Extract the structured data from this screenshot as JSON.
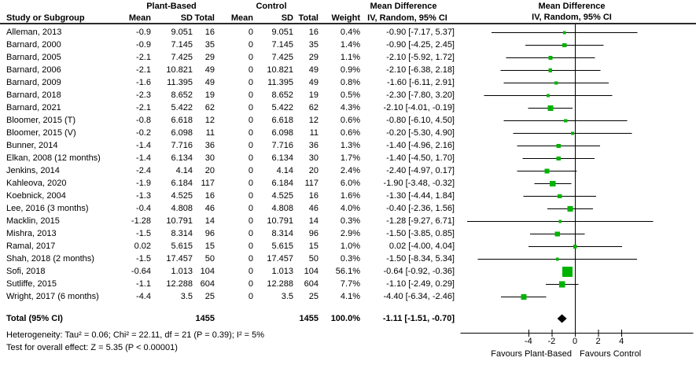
{
  "header": {
    "group1": "Plant-Based",
    "group2": "Control",
    "study_col": "Study or Subgroup",
    "mean": "Mean",
    "sd": "SD",
    "total": "Total",
    "weight": "Weight",
    "md_title": "Mean Difference",
    "md_subtitle": "IV, Random, 95% CI"
  },
  "chart_data": {
    "type": "forest",
    "effect_measure": "Mean Difference",
    "model": "IV, Random, 95% CI",
    "xlim": [
      -9.9,
      10.1
    ],
    "x_ticks": [
      -4,
      -2,
      0,
      2,
      4
    ],
    "favours_left": "Favours Plant-Based",
    "favours_right": "Favours Control",
    "square_color": "#00b300",
    "diamond_color": "#000000",
    "studies": [
      {
        "name": "Alleman, 2013",
        "mean": "-0.9",
        "sd": "9.051",
        "n": "16",
        "c_mean": "0",
        "c_sd": "9.051",
        "c_n": "16",
        "weight": "0.4%",
        "ci_label": "-0.90 [-7.17, 5.37]",
        "est": -0.9,
        "lo": -7.17,
        "hi": 5.37,
        "w": 0.4
      },
      {
        "name": "Barnard, 2000",
        "mean": "-0.9",
        "sd": "7.145",
        "n": "35",
        "c_mean": "0",
        "c_sd": "7.145",
        "c_n": "35",
        "weight": "1.4%",
        "ci_label": "-0.90 [-4.25, 2.45]",
        "est": -0.9,
        "lo": -4.25,
        "hi": 2.45,
        "w": 1.4
      },
      {
        "name": "Barnard, 2005",
        "mean": "-2.1",
        "sd": "7.425",
        "n": "29",
        "c_mean": "0",
        "c_sd": "7.425",
        "c_n": "29",
        "weight": "1.1%",
        "ci_label": "-2.10 [-5.92, 1.72]",
        "est": -2.1,
        "lo": -5.92,
        "hi": 1.72,
        "w": 1.1
      },
      {
        "name": "Barnard, 2006",
        "mean": "-2.1",
        "sd": "10.821",
        "n": "49",
        "c_mean": "0",
        "c_sd": "10.821",
        "c_n": "49",
        "weight": "0.9%",
        "ci_label": "-2.10 [-6.38, 2.18]",
        "est": -2.1,
        "lo": -6.38,
        "hi": 2.18,
        "w": 0.9
      },
      {
        "name": "Barnard, 2009",
        "mean": "-1.6",
        "sd": "11.395",
        "n": "49",
        "c_mean": "0",
        "c_sd": "11.395",
        "c_n": "49",
        "weight": "0.8%",
        "ci_label": "-1.60 [-6.11, 2.91]",
        "est": -1.6,
        "lo": -6.11,
        "hi": 2.91,
        "w": 0.8
      },
      {
        "name": "Barnard, 2018",
        "mean": "-2.3",
        "sd": "8.652",
        "n": "19",
        "c_mean": "0",
        "c_sd": "8.652",
        "c_n": "19",
        "weight": "0.5%",
        "ci_label": "-2.30 [-7.80, 3.20]",
        "est": -2.3,
        "lo": -7.8,
        "hi": 3.2,
        "w": 0.5
      },
      {
        "name": "Barnard, 2021",
        "mean": "-2.1",
        "sd": "5.422",
        "n": "62",
        "c_mean": "0",
        "c_sd": "5.422",
        "c_n": "62",
        "weight": "4.3%",
        "ci_label": "-2.10 [-4.01, -0.19]",
        "est": -2.1,
        "lo": -4.01,
        "hi": -0.19,
        "w": 4.3
      },
      {
        "name": "Bloomer, 2015 (T)",
        "mean": "-0.8",
        "sd": "6.618",
        "n": "12",
        "c_mean": "0",
        "c_sd": "6.618",
        "c_n": "12",
        "weight": "0.6%",
        "ci_label": "-0.80 [-6.10, 4.50]",
        "est": -0.8,
        "lo": -6.1,
        "hi": 4.5,
        "w": 0.6
      },
      {
        "name": "Bloomer, 2015 (V)",
        "mean": "-0.2",
        "sd": "6.098",
        "n": "11",
        "c_mean": "0",
        "c_sd": "6.098",
        "c_n": "11",
        "weight": "0.6%",
        "ci_label": "-0.20 [-5.30, 4.90]",
        "est": -0.2,
        "lo": -5.3,
        "hi": 4.9,
        "w": 0.6
      },
      {
        "name": "Bunner, 2014",
        "mean": "-1.4",
        "sd": "7.716",
        "n": "36",
        "c_mean": "0",
        "c_sd": "7.716",
        "c_n": "36",
        "weight": "1.3%",
        "ci_label": "-1.40 [-4.96, 2.16]",
        "est": -1.4,
        "lo": -4.96,
        "hi": 2.16,
        "w": 1.3
      },
      {
        "name": "Elkan, 2008 (12 months)",
        "mean": "-1.4",
        "sd": "6.134",
        "n": "30",
        "c_mean": "0",
        "c_sd": "6.134",
        "c_n": "30",
        "weight": "1.7%",
        "ci_label": "-1.40 [-4.50, 1.70]",
        "est": -1.4,
        "lo": -4.5,
        "hi": 1.7,
        "w": 1.7
      },
      {
        "name": "Jenkins, 2014",
        "mean": "-2.4",
        "sd": "4.14",
        "n": "20",
        "c_mean": "0",
        "c_sd": "4.14",
        "c_n": "20",
        "weight": "2.4%",
        "ci_label": "-2.40 [-4.97, 0.17]",
        "est": -2.4,
        "lo": -4.97,
        "hi": 0.17,
        "w": 2.4
      },
      {
        "name": "Kahleova, 2020",
        "mean": "-1.9",
        "sd": "6.184",
        "n": "117",
        "c_mean": "0",
        "c_sd": "6.184",
        "c_n": "117",
        "weight": "6.0%",
        "ci_label": "-1.90 [-3.48, -0.32]",
        "est": -1.9,
        "lo": -3.48,
        "hi": -0.32,
        "w": 6.0
      },
      {
        "name": "Koebnick, 2004",
        "mean": "-1.3",
        "sd": "4.525",
        "n": "16",
        "c_mean": "0",
        "c_sd": "4.525",
        "c_n": "16",
        "weight": "1.6%",
        "ci_label": "-1.30 [-4.44, 1.84]",
        "est": -1.3,
        "lo": -4.44,
        "hi": 1.84,
        "w": 1.6
      },
      {
        "name": "Lee, 2016 (3 months)",
        "mean": "-0.4",
        "sd": "4.808",
        "n": "46",
        "c_mean": "0",
        "c_sd": "4.808",
        "c_n": "46",
        "weight": "4.0%",
        "ci_label": "-0.40 [-2.36, 1.56]",
        "est": -0.4,
        "lo": -2.36,
        "hi": 1.56,
        "w": 4.0
      },
      {
        "name": "Macklin, 2015",
        "mean": "-1.28",
        "sd": "10.791",
        "n": "14",
        "c_mean": "0",
        "c_sd": "10.791",
        "c_n": "14",
        "weight": "0.3%",
        "ci_label": "-1.28 [-9.27, 6.71]",
        "est": -1.28,
        "lo": -9.27,
        "hi": 6.71,
        "w": 0.3
      },
      {
        "name": "Mishra, 2013",
        "mean": "-1.5",
        "sd": "8.314",
        "n": "96",
        "c_mean": "0",
        "c_sd": "8.314",
        "c_n": "96",
        "weight": "2.9%",
        "ci_label": "-1.50 [-3.85, 0.85]",
        "est": -1.5,
        "lo": -3.85,
        "hi": 0.85,
        "w": 2.9
      },
      {
        "name": "Ramal, 2017",
        "mean": "0.02",
        "sd": "5.615",
        "n": "15",
        "c_mean": "0",
        "c_sd": "5.615",
        "c_n": "15",
        "weight": "1.0%",
        "ci_label": "0.02 [-4.00, 4.04]",
        "est": 0.02,
        "lo": -4.0,
        "hi": 4.04,
        "w": 1.0
      },
      {
        "name": "Shah, 2018 (2 months)",
        "mean": "-1.5",
        "sd": "17.457",
        "n": "50",
        "c_mean": "0",
        "c_sd": "17.457",
        "c_n": "50",
        "weight": "0.3%",
        "ci_label": "-1.50 [-8.34, 5.34]",
        "est": -1.5,
        "lo": -8.34,
        "hi": 5.34,
        "w": 0.3
      },
      {
        "name": "Sofi, 2018",
        "mean": "-0.64",
        "sd": "1.013",
        "n": "104",
        "c_mean": "0",
        "c_sd": "1.013",
        "c_n": "104",
        "weight": "56.1%",
        "ci_label": "-0.64 [-0.92, -0.36]",
        "est": -0.64,
        "lo": -0.92,
        "hi": -0.36,
        "w": 56.1
      },
      {
        "name": "Sutliffe, 2015",
        "mean": "-1.1",
        "sd": "12.288",
        "n": "604",
        "c_mean": "0",
        "c_sd": "12.288",
        "c_n": "604",
        "weight": "7.7%",
        "ci_label": "-1.10 [-2.49, 0.29]",
        "est": -1.1,
        "lo": -2.49,
        "hi": 0.29,
        "w": 7.7
      },
      {
        "name": "Wright, 2017 (6 months)",
        "mean": "-4.4",
        "sd": "3.5",
        "n": "25",
        "c_mean": "0",
        "c_sd": "3.5",
        "c_n": "25",
        "weight": "4.1%",
        "ci_label": "-4.40 [-6.34, -2.46]",
        "est": -4.4,
        "lo": -6.34,
        "hi": -2.46,
        "w": 4.1
      }
    ],
    "total": {
      "label": "Total (95% CI)",
      "n": "1455",
      "c_n": "1455",
      "weight": "100.0%",
      "ci_label": "-1.11 [-1.51, -0.70]",
      "est": -1.11,
      "lo": -1.51,
      "hi": -0.7
    }
  },
  "footer": {
    "heterogeneity": "Heterogeneity: Tau² = 0.06; Chi² = 22.11, df = 21 (P = 0.39); I² = 5%",
    "overall_effect": "Test for overall effect: Z = 5.35 (P < 0.00001)"
  }
}
